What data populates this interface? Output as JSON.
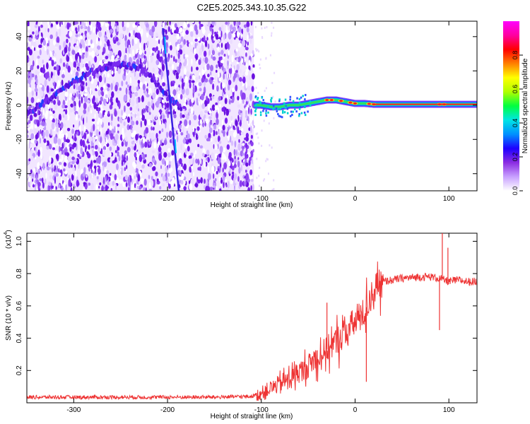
{
  "title": "C2E5.2025.343.10.35.G22",
  "chart_data": [
    {
      "type": "heatmap",
      "title": "C2E5.2025.343.10.35.G22",
      "xlabel": "Height of straight line (km)",
      "ylabel": "Frequency (Hz)",
      "xlim": [
        -350,
        130
      ],
      "ylim": [
        -50,
        49
      ],
      "xticks": [
        -300,
        -200,
        -100,
        0,
        100
      ],
      "yticks": [
        -40,
        -20,
        0,
        20,
        40
      ],
      "xtick_labels": [
        "-300",
        "-200",
        "-100",
        "0",
        "100"
      ],
      "ytick_labels": [
        "-40",
        "-20",
        "0",
        "20",
        "40"
      ],
      "noise_region_x": [
        -350,
        -108
      ],
      "signal_track": {
        "description": "Doppler track (frequency vs height)",
        "x": [
          -350,
          -330,
          -310,
          -290,
          -270,
          -250,
          -230,
          -215,
          -210,
          -200,
          -185
        ],
        "y": [
          -5,
          2,
          10,
          17,
          22,
          24,
          22,
          15,
          12,
          5,
          -2
        ]
      },
      "steep_line": {
        "x": [
          -205,
          -188
        ],
        "y": [
          45,
          -50
        ]
      },
      "carrier": {
        "x": [
          -108,
          -100,
          -90,
          -80,
          -70,
          -60,
          -50,
          -40,
          -30,
          -20,
          -10,
          0,
          10,
          20,
          30,
          50,
          70,
          90,
          110,
          130
        ],
        "y": [
          0,
          0,
          -1,
          -1,
          0,
          0,
          1,
          2,
          3,
          3,
          2,
          1,
          1,
          0.5,
          0.5,
          0.5,
          0.5,
          0.5,
          0.5,
          0.5
        ]
      },
      "colorbar": {
        "label": "Normalized spectral amplitude",
        "range": [
          0.0,
          1.0
        ],
        "ticks": [
          0.0,
          0.2,
          0.4,
          0.6,
          0.8
        ],
        "tick_labels": [
          "0.0",
          "0.2",
          "0.4",
          "0.6",
          "0.8"
        ],
        "colors": [
          "#ffffff",
          "#c8a0ff",
          "#8a2be2",
          "#1e00ff",
          "#0090ff",
          "#00e5e5",
          "#00ff40",
          "#b0ff00",
          "#ffff00",
          "#ff8000",
          "#ff0000",
          "#ff00a0",
          "#ff00ff"
        ]
      }
    },
    {
      "type": "line",
      "xlabel": "Height of straight line (km)",
      "ylabel": "SNR (10 * v/v)",
      "y_multiplier": "(x10",
      "y_multiplier_exp": "4",
      "y_multiplier_close": ")",
      "xlim": [
        -350,
        130
      ],
      "ylim": [
        0,
        1.05
      ],
      "xticks": [
        -300,
        -200,
        -100,
        0,
        100
      ],
      "yticks": [
        0.2,
        0.4,
        0.6,
        0.8,
        1.0
      ],
      "xtick_labels": [
        "-300",
        "-200",
        "-100",
        "0",
        "100"
      ],
      "ytick_labels": [
        "0.2",
        "0.4",
        "0.6",
        "0.8",
        "1.0"
      ],
      "series": [
        {
          "name": "SNR",
          "color": "#ee3333",
          "x": [
            -350,
            -300,
            -250,
            -200,
            -150,
            -110,
            -100,
            -90,
            -80,
            -70,
            -60,
            -50,
            -40,
            -30,
            -20,
            -10,
            0,
            10,
            15,
            20,
            30,
            40,
            50,
            60,
            70,
            80,
            90,
            95,
            100,
            110,
            120,
            130
          ],
          "y": [
            0.03,
            0.03,
            0.03,
            0.03,
            0.03,
            0.035,
            0.06,
            0.09,
            0.12,
            0.15,
            0.19,
            0.23,
            0.28,
            0.33,
            0.38,
            0.44,
            0.5,
            0.56,
            0.64,
            0.7,
            0.75,
            0.76,
            0.77,
            0.775,
            0.78,
            0.78,
            0.77,
            0.76,
            0.75,
            0.76,
            0.75,
            0.75
          ]
        }
      ],
      "spikes": [
        {
          "x": -30,
          "y": 0.62
        },
        {
          "x": 12,
          "y": 0.13
        },
        {
          "x": 90,
          "y": 0.45
        },
        {
          "x": 93,
          "y": 1.05
        },
        {
          "x": 99,
          "y": 0.96
        }
      ]
    }
  ]
}
